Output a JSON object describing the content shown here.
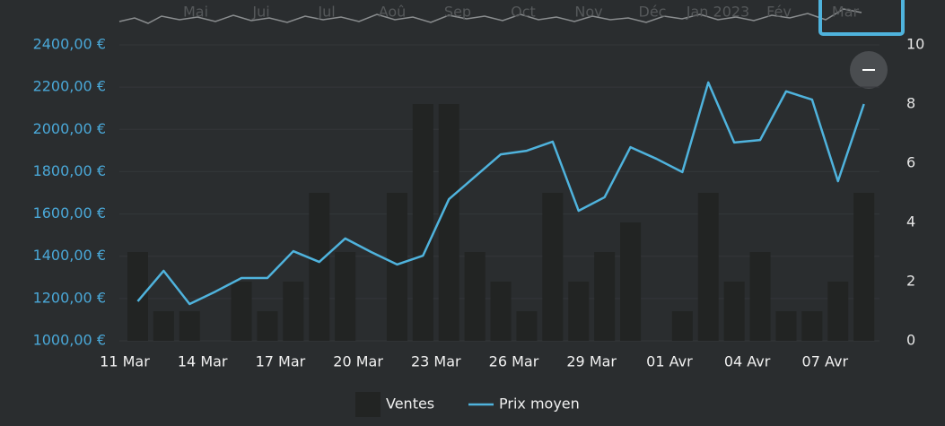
{
  "chart_data": {
    "type": "bar-line",
    "categories": [
      "11 Mar",
      null,
      null,
      "14 Mar",
      null,
      null,
      "17 Mar",
      null,
      null,
      "20 Mar",
      null,
      null,
      "23 Mar",
      null,
      null,
      "26 Mar",
      null,
      null,
      "29 Mar",
      null,
      null,
      "01 Avr",
      null,
      null,
      "04 Avr",
      null,
      null,
      "07 Avr",
      null
    ],
    "series": [
      {
        "name": "Ventes",
        "type": "bar",
        "axis": "y2",
        "color": "#222423",
        "values": [
          3,
          1,
          1,
          0,
          2,
          1,
          2,
          5,
          3,
          0,
          5,
          8,
          8,
          3,
          2,
          1,
          5,
          2,
          3,
          4,
          0,
          1,
          5,
          2,
          3,
          1,
          1,
          2,
          5
        ]
      },
      {
        "name": "Prix moyen",
        "type": "line",
        "axis": "y",
        "color": "#4fb3dd",
        "values": [
          1187,
          1331,
          1174,
          1233,
          1297,
          1297,
          1424,
          1373,
          1484,
          1420,
          1361,
          1403,
          1670,
          1776,
          1882,
          1899,
          1942,
          1615,
          1679,
          1916,
          1861,
          1798,
          2222,
          1938,
          1950,
          2180,
          2141,
          1755,
          2120
        ]
      }
    ],
    "ylim": [
      1000,
      2400
    ],
    "yticks": [
      {
        "value": 1000,
        "label": "1000,00 €"
      },
      {
        "value": 1200,
        "label": "1200,00 €"
      },
      {
        "value": 1400,
        "label": "1400,00 €"
      },
      {
        "value": 1600,
        "label": "1600,00 €"
      },
      {
        "value": 1800,
        "label": "1800,00 €"
      },
      {
        "value": 2000,
        "label": "2000,00 €"
      },
      {
        "value": 2200,
        "label": "2200,00 €"
      },
      {
        "value": 2400,
        "label": "2400,00 €"
      }
    ],
    "y2lim": [
      0,
      10
    ],
    "y2ticks": [
      0,
      2,
      4,
      6,
      8,
      10
    ],
    "grid": true,
    "legend": "bottom",
    "navigator": {
      "months": [
        "Mai",
        "Jui",
        "Jul",
        "Aoû",
        "Sep",
        "Oct",
        "Nov",
        "Déc",
        "Jan 2023",
        "Fév",
        "Mar"
      ]
    }
  }
}
